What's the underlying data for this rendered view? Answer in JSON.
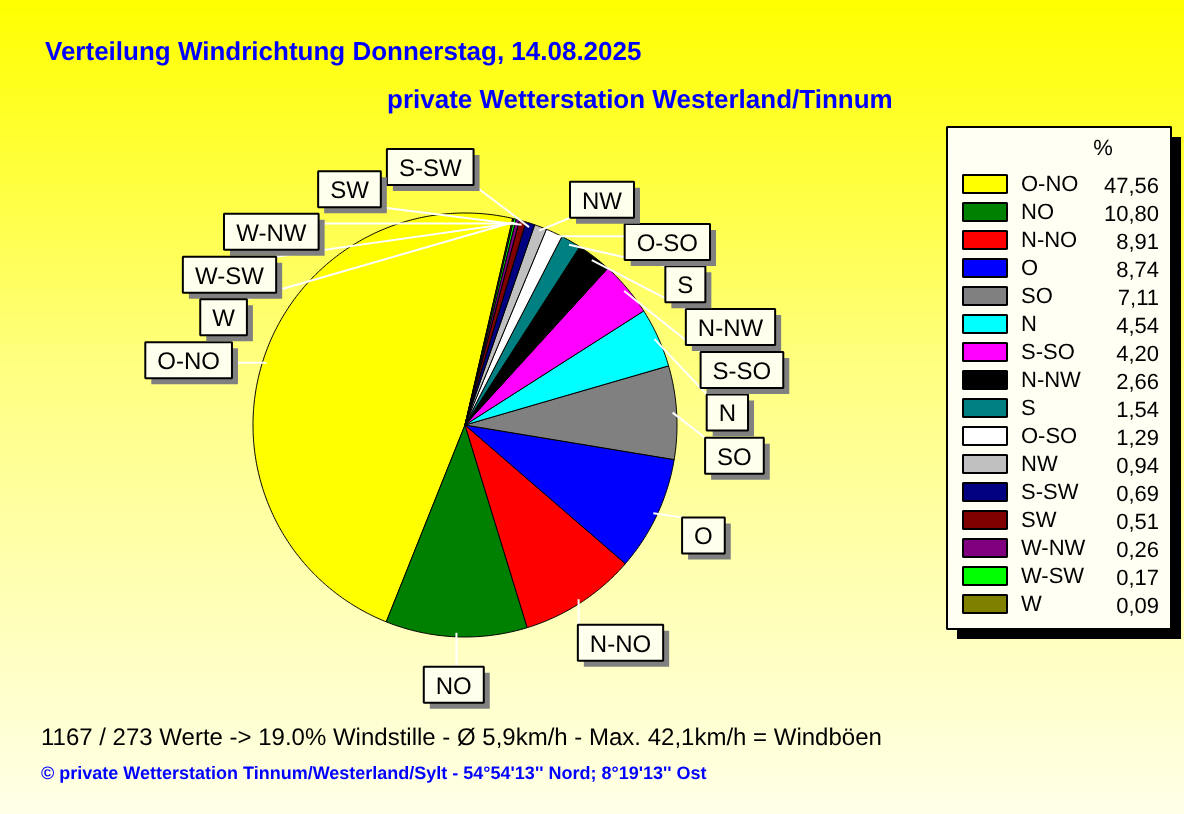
{
  "chart_data": {
    "type": "pie",
    "title": "Verteilung Windrichtung   Donnerstag, 14.08.2025",
    "subtitle": "private Wetterstation Westerland/Tinnum",
    "categories": [
      "O-NO",
      "NO",
      "N-NO",
      "O",
      "SO",
      "N",
      "S-SO",
      "N-NW",
      "S",
      "O-SO",
      "NW",
      "S-SW",
      "SW",
      "W-NW",
      "W-SW",
      "W"
    ],
    "values": [
      47.56,
      10.8,
      8.91,
      8.74,
      7.11,
      4.54,
      4.2,
      2.66,
      1.54,
      1.29,
      0.94,
      0.69,
      0.51,
      0.26,
      0.17,
      0.09
    ],
    "colors": [
      "#ffff00",
      "#008000",
      "#ff0000",
      "#0000ff",
      "#808080",
      "#00ffff",
      "#ff00ff",
      "#000000",
      "#008080",
      "#ffffff",
      "#c0c0c0",
      "#000080",
      "#800000",
      "#800080",
      "#00ff00",
      "#808000"
    ],
    "value_labels": [
      "47,56",
      "10,80",
      "8,91",
      "8,74",
      "7,11",
      "4,54",
      "4,20",
      "2,66",
      "1,54",
      "1,29",
      "0,94",
      "0,69",
      "0,51",
      "0,26",
      "0,17",
      "0,09"
    ],
    "legend_title": "%",
    "legend": "right",
    "annotations": [
      "1167 / 273 Werte  -> 19.0% Windstille   -   Ø 5,9km/h  -  Max. 42,1km/h = Windböen",
      "© private Wetterstation Tinnum/Westerland/Sylt   -   54°54'13'' Nord; 8°19'13'' Ost"
    ]
  }
}
